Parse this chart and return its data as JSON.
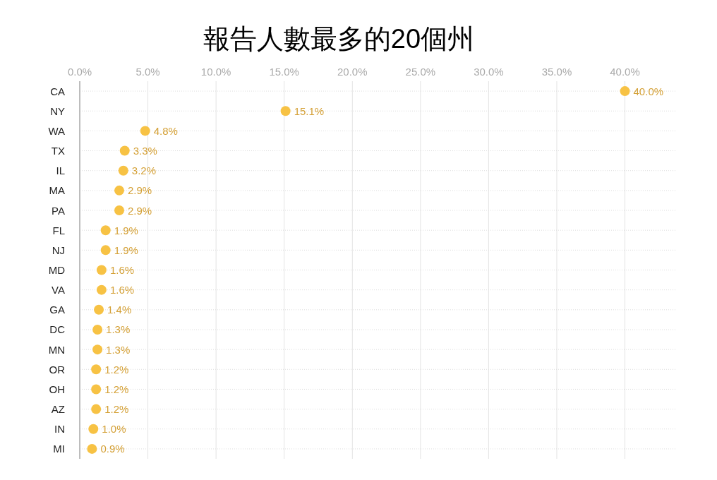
{
  "chart_data": {
    "type": "scatter",
    "orientation": "horizontal",
    "title": "報告人數最多的20個州",
    "categories": [
      "CA",
      "NY",
      "WA",
      "TX",
      "IL",
      "MA",
      "PA",
      "FL",
      "NJ",
      "MD",
      "VA",
      "GA",
      "DC",
      "MN",
      "OR",
      "OH",
      "AZ",
      "IN",
      "MI"
    ],
    "series": [
      {
        "color": "#f7c244",
        "values": [
          40.0,
          15.1,
          4.8,
          3.3,
          3.2,
          2.9,
          2.9,
          1.9,
          1.9,
          1.6,
          1.6,
          1.4,
          1.3,
          1.3,
          1.2,
          1.2,
          1.2,
          1.0,
          0.9
        ],
        "value_labels": [
          "40.0%",
          "15.1%",
          "4.8%",
          "3.3%",
          "3.2%",
          "2.9%",
          "2.9%",
          "1.9%",
          "1.9%",
          "1.6%",
          "1.6%",
          "1.4%",
          "1.3%",
          "1.3%",
          "1.2%",
          "1.2%",
          "1.2%",
          "1.0%",
          "0.9%"
        ]
      }
    ],
    "xlim": [
      0,
      43.7
    ],
    "xticks": [
      {
        "value": 0,
        "label": "0.0%"
      },
      {
        "value": 5,
        "label": "5.0%"
      },
      {
        "value": 10,
        "label": "10.0%"
      },
      {
        "value": 15,
        "label": "15.0%"
      },
      {
        "value": 20,
        "label": "20.0%"
      },
      {
        "value": 25,
        "label": "25.0%"
      },
      {
        "value": 30,
        "label": "30.0%"
      },
      {
        "value": 35,
        "label": "35.0%"
      },
      {
        "value": 40,
        "label": "40.0%"
      }
    ],
    "grid": true,
    "marker": "circle"
  }
}
